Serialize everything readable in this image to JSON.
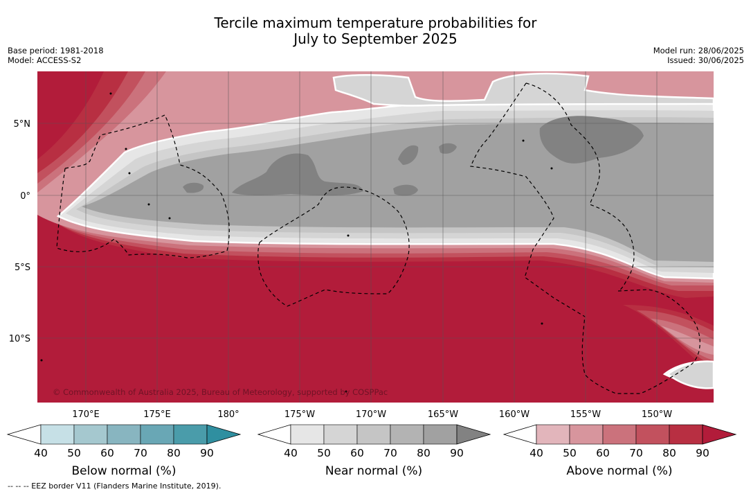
{
  "title": {
    "line1": "Tercile maximum temperature probabilities for",
    "line2": "July to September 2025"
  },
  "meta_left": {
    "base_period": "Base period: 1981-2018",
    "model": "Model: ACCESS-S2"
  },
  "meta_right": {
    "model_run": "Model run: 28/06/2025",
    "issued": "Issued: 30/06/2025"
  },
  "copyright": "© Commonwealth of Australia 2025, Bureau of Meteorology, supported by COSPPac",
  "latitude_labels": [
    "5°N",
    "0°",
    "5°S",
    "10°S"
  ],
  "longitude_labels": [
    "170°E",
    "175°E",
    "180°",
    "175°W",
    "170°W",
    "165°W",
    "160°W",
    "155°W",
    "150°W"
  ],
  "colorbars": [
    {
      "name": "below",
      "title": "Below normal (%)",
      "ticks": [
        "40",
        "50",
        "60",
        "70",
        "80",
        "90"
      ],
      "colors": [
        "#ffffff",
        "#c6e0e6",
        "#a5c8cf",
        "#88b5c0",
        "#69a7b5",
        "#4a9caa",
        "#2f8fa0"
      ]
    },
    {
      "name": "near",
      "title": "Near normal (%)",
      "ticks": [
        "40",
        "50",
        "60",
        "70",
        "80",
        "90"
      ],
      "colors": [
        "#ffffff",
        "#e6e6e6",
        "#d5d5d5",
        "#c5c5c5",
        "#b3b3b3",
        "#a1a1a1",
        "#828282"
      ]
    },
    {
      "name": "above",
      "title": "Above normal (%)",
      "ticks": [
        "40",
        "50",
        "60",
        "70",
        "80",
        "90"
      ],
      "colors": [
        "#ffffff",
        "#e2b5bb",
        "#d7959d",
        "#cb727c",
        "#c2515e",
        "#b82f42",
        "#b21c3a"
      ]
    }
  ],
  "footnote": "--  --  -- EEZ border V11 (Flanders Marine Institute, 2019).",
  "map_colors": {
    "above_90": "#b21c3a",
    "above_80": "#b82f42",
    "above_70": "#c2515e",
    "above_60": "#cb727c",
    "above_50": "#d7959d",
    "near_50": "#e6e6e6",
    "near_60": "#d5d5d5",
    "near_70": "#c5c5c5",
    "near_80": "#a1a1a1",
    "near_90": "#828282"
  }
}
